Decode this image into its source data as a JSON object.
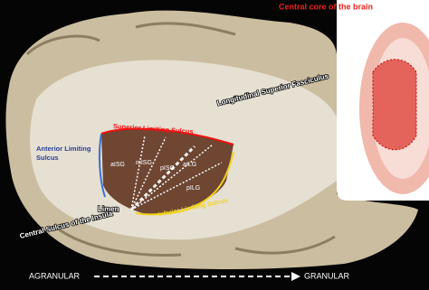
{
  "labels": {
    "inset_title": "Central core of the brain",
    "fasciculus": "Longitudinal Superior Fasciculus",
    "superior_sulcus": "Superior Limiting Sulcus",
    "anterior_sulcus": [
      "Anterior Limiting",
      "Sulcus"
    ],
    "gyri": [
      "aISG",
      "mISG",
      "pISG",
      "aILG",
      "pILG"
    ],
    "limen": "Limen",
    "central_sulcus": "Central Sulcus of the Insula",
    "inferior_sulcus": "Inferior Limiting Sulcus"
  },
  "axis": {
    "left": "AGRANULAR",
    "right": "GRANULAR"
  }
}
